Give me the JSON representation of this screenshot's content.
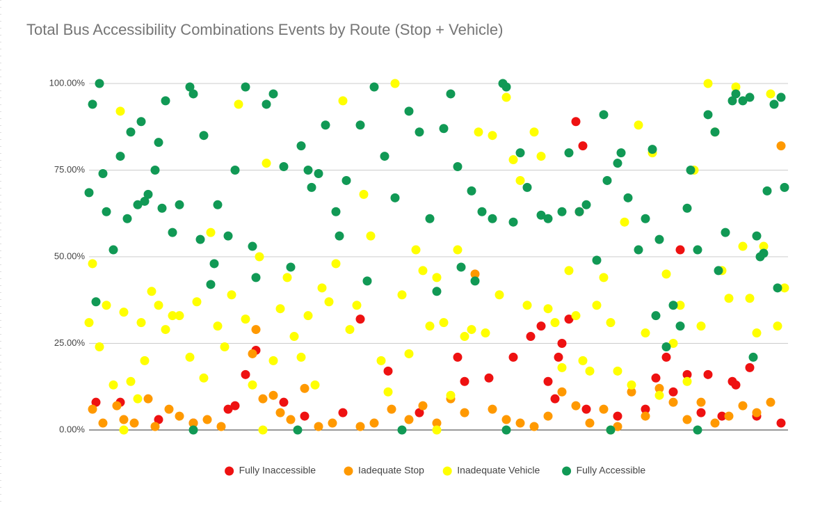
{
  "chart_data": {
    "type": "scatter",
    "title": "Total  Bus Accessibility Combinations Events by Route (Stop + Vehicle)",
    "xlim": [
      0,
      201
    ],
    "ylim": [
      0,
      100
    ],
    "yticks": [
      {
        "value": 0,
        "label": "0.00%"
      },
      {
        "value": 25,
        "label": "25.00%"
      },
      {
        "value": 50,
        "label": "50.00%"
      },
      {
        "value": 75,
        "label": "75.00%"
      },
      {
        "value": 100,
        "label": "100.00%"
      }
    ],
    "grid": true,
    "legend": "bottom",
    "series": [
      {
        "name": "Fully Inaccessible",
        "color": "#ee1111",
        "x": [
          2,
          9,
          20,
          30,
          40,
          42,
          45,
          48,
          56,
          62,
          73,
          78,
          86,
          95,
          106,
          108,
          115,
          122,
          127,
          130,
          132,
          134,
          135,
          136,
          138,
          140,
          141,
          142,
          143,
          152,
          160,
          163,
          166,
          168,
          170,
          172,
          176,
          178,
          182,
          185,
          186,
          190,
          192,
          199
        ],
        "values": [
          8,
          8,
          3,
          2,
          6,
          7,
          16,
          23,
          8,
          4,
          5,
          32,
          17,
          5,
          21,
          14,
          15,
          21,
          27,
          30,
          14,
          9,
          21,
          25,
          32,
          89,
          63,
          82,
          6,
          4,
          6,
          15,
          21,
          11,
          52,
          16,
          5,
          16,
          4,
          14,
          13,
          18,
          4,
          2
        ]
      },
      {
        "name": "Iadequate Stop",
        "color": "#ff9900",
        "x": [
          1,
          4,
          8,
          10,
          13,
          17,
          19,
          23,
          26,
          30,
          34,
          38,
          47,
          48,
          50,
          53,
          55,
          58,
          62,
          66,
          70,
          78,
          82,
          87,
          92,
          96,
          100,
          104,
          108,
          111,
          116,
          120,
          124,
          128,
          132,
          136,
          140,
          144,
          148,
          152,
          156,
          160,
          164,
          168,
          172,
          176,
          180,
          184,
          188,
          192,
          196,
          199
        ],
        "values": [
          6,
          2,
          7,
          3,
          2,
          9,
          1,
          6,
          4,
          2,
          3,
          1,
          22,
          29,
          9,
          10,
          5,
          3,
          12,
          1,
          2,
          1,
          2,
          6,
          3,
          7,
          2,
          9,
          5,
          45,
          6,
          3,
          2,
          1,
          4,
          11,
          7,
          2,
          6,
          1,
          11,
          4,
          12,
          8,
          3,
          8,
          2,
          4,
          7,
          5,
          8,
          82
        ]
      },
      {
        "name": "Inadequate Vehicle",
        "color": "#ffff00",
        "x": [
          0,
          1,
          3,
          5,
          7,
          9,
          10,
          12,
          14,
          15,
          16,
          18,
          20,
          22,
          24,
          26,
          29,
          31,
          33,
          35,
          37,
          39,
          41,
          43,
          45,
          47,
          49,
          51,
          53,
          55,
          57,
          59,
          61,
          63,
          65,
          67,
          69,
          71,
          73,
          75,
          77,
          79,
          81,
          84,
          86,
          88,
          90,
          92,
          94,
          96,
          98,
          100,
          102,
          104,
          106,
          108,
          110,
          112,
          114,
          116,
          118,
          120,
          122,
          124,
          126,
          128,
          130,
          132,
          134,
          136,
          138,
          140,
          142,
          144,
          146,
          148,
          150,
          152,
          154,
          156,
          158,
          160,
          162,
          164,
          166,
          168,
          170,
          172,
          174,
          176,
          178,
          180,
          182,
          184,
          186,
          188,
          190,
          192,
          194,
          196,
          198,
          200,
          10,
          50,
          100,
          150
        ],
        "values": [
          31,
          48,
          24,
          36,
          13,
          92,
          34,
          14,
          9,
          31,
          20,
          40,
          36,
          29,
          33,
          33,
          21,
          37,
          15,
          57,
          30,
          24,
          39,
          94,
          32,
          13,
          50,
          77,
          20,
          35,
          44,
          27,
          21,
          33,
          13,
          41,
          37,
          48,
          95,
          29,
          36,
          68,
          56,
          20,
          11,
          100,
          39,
          22,
          52,
          46,
          30,
          44,
          31,
          10,
          52,
          27,
          29,
          86,
          28,
          85,
          39,
          96,
          78,
          72,
          36,
          86,
          79,
          35,
          31,
          18,
          46,
          33,
          20,
          17,
          36,
          44,
          31,
          17,
          60,
          13,
          88,
          28,
          80,
          10,
          45,
          25,
          36,
          14,
          75,
          30,
          100,
          86,
          46,
          38,
          99,
          53,
          38,
          28,
          53,
          97,
          30,
          41,
          0,
          0,
          0,
          0
        ]
      },
      {
        "name": "Fully Accessible",
        "color": "#119955",
        "x": [
          0,
          1,
          2,
          3,
          4,
          5,
          7,
          9,
          11,
          12,
          14,
          15,
          16,
          17,
          19,
          20,
          21,
          22,
          24,
          26,
          29,
          30,
          32,
          33,
          35,
          36,
          37,
          40,
          42,
          45,
          47,
          48,
          51,
          53,
          56,
          58,
          61,
          63,
          64,
          66,
          68,
          71,
          72,
          74,
          78,
          80,
          82,
          85,
          88,
          92,
          95,
          98,
          100,
          102,
          104,
          106,
          107,
          110,
          111,
          113,
          116,
          119,
          120,
          122,
          124,
          126,
          130,
          132,
          136,
          138,
          141,
          143,
          146,
          148,
          149,
          152,
          153,
          155,
          158,
          160,
          162,
          163,
          164,
          166,
          168,
          170,
          172,
          173,
          175,
          178,
          180,
          181,
          183,
          185,
          186,
          188,
          190,
          191,
          192,
          193,
          194,
          195,
          197,
          198,
          199,
          200,
          30,
          60,
          90,
          120,
          150,
          175
        ],
        "values": [
          68.5,
          94,
          37,
          100,
          74,
          63,
          52,
          79,
          61,
          86,
          65,
          89,
          66,
          68,
          75,
          83,
          64,
          95,
          57,
          65,
          99,
          97,
          55,
          85,
          42,
          48,
          65,
          56,
          75,
          99,
          53,
          44,
          94,
          97,
          76,
          47,
          82,
          75,
          70,
          74,
          88,
          63,
          56,
          72,
          88,
          43,
          99,
          79,
          67,
          92,
          86,
          61,
          40,
          87,
          97,
          76,
          47,
          69,
          43,
          63,
          61,
          100,
          99,
          60,
          80,
          70,
          62,
          61,
          63,
          80,
          63,
          65,
          49,
          91,
          72,
          77,
          80,
          67,
          52,
          61,
          81,
          33,
          55,
          24,
          36,
          30,
          64,
          75,
          52,
          91,
          86,
          46,
          57,
          95,
          97,
          95,
          96,
          21,
          56,
          50,
          51,
          69,
          94,
          41,
          96,
          70,
          0,
          0,
          0,
          0,
          0,
          0
        ]
      }
    ]
  }
}
